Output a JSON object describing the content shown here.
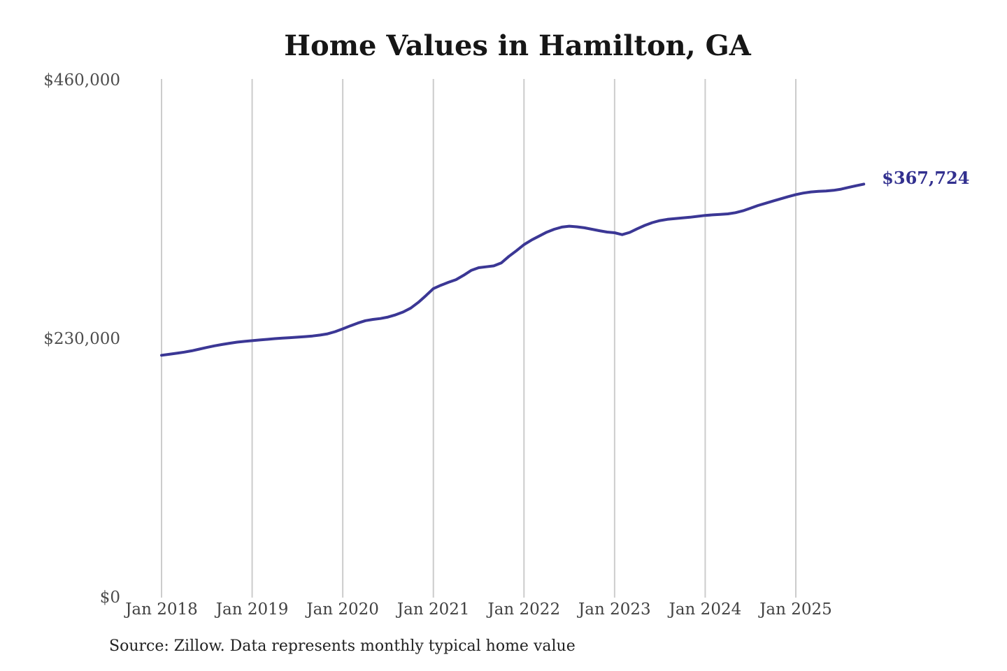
{
  "title": "Home Values in Hamilton, GA",
  "source_note": "Source: Zillow. Data represents monthly typical home value",
  "colors": {
    "background": "#ffffff",
    "line": "#3b3795",
    "grid": "#cccccc",
    "axis_text": "#4a4a4a",
    "title_text": "#161616",
    "source_text": "#222222",
    "end_label_text": "#32308f"
  },
  "chart_data": {
    "type": "line",
    "title": "Home Values in Hamilton, GA",
    "unit": "USD",
    "frequency": "monthly",
    "grid": "vertical-only",
    "legend": "none",
    "ylim": [
      0,
      460000
    ],
    "y_ticks": [
      {
        "value": 0,
        "label": "$0"
      },
      {
        "value": 230000,
        "label": "$230,000"
      },
      {
        "value": 460000,
        "label": "$460,000"
      }
    ],
    "x_tick_labels": [
      "Jan 2018",
      "Jan 2019",
      "Jan 2020",
      "Jan 2021",
      "Jan 2022",
      "Jan 2023",
      "Jan 2024",
      "Jan 2025"
    ],
    "last_value": 367724,
    "last_value_label": "$367,724",
    "months": [
      "2018-01",
      "2018-02",
      "2018-03",
      "2018-04",
      "2018-05",
      "2018-06",
      "2018-07",
      "2018-08",
      "2018-09",
      "2018-10",
      "2018-11",
      "2018-12",
      "2019-01",
      "2019-02",
      "2019-03",
      "2019-04",
      "2019-05",
      "2019-06",
      "2019-07",
      "2019-08",
      "2019-09",
      "2019-10",
      "2019-11",
      "2019-12",
      "2020-01",
      "2020-02",
      "2020-03",
      "2020-04",
      "2020-05",
      "2020-06",
      "2020-07",
      "2020-08",
      "2020-09",
      "2020-10",
      "2020-11",
      "2020-12",
      "2021-01",
      "2021-02",
      "2021-03",
      "2021-04",
      "2021-05",
      "2021-06",
      "2021-07",
      "2021-08",
      "2021-09",
      "2021-10",
      "2021-11",
      "2021-12",
      "2022-01",
      "2022-02",
      "2022-03",
      "2022-04",
      "2022-05",
      "2022-06",
      "2022-07",
      "2022-08",
      "2022-09",
      "2022-10",
      "2022-11",
      "2022-12",
      "2023-01",
      "2023-02",
      "2023-03",
      "2023-04",
      "2023-05",
      "2023-06",
      "2023-07",
      "2023-08",
      "2023-09",
      "2023-10",
      "2023-11",
      "2023-12",
      "2024-01",
      "2024-02",
      "2024-03",
      "2024-04",
      "2024-05",
      "2024-06",
      "2024-07",
      "2024-08",
      "2024-09",
      "2024-10",
      "2024-11",
      "2024-12",
      "2025-01",
      "2025-02",
      "2025-03",
      "2025-04",
      "2025-05",
      "2025-06",
      "2025-07",
      "2025-08",
      "2025-09",
      "2025-10"
    ],
    "series": [
      {
        "name": "Typical home value",
        "values": [
          215500,
          216400,
          217300,
          218300,
          219500,
          221000,
          222500,
          223900,
          225100,
          226200,
          227200,
          227900,
          228500,
          229100,
          229700,
          230300,
          230800,
          231200,
          231600,
          232100,
          232700,
          233500,
          234600,
          236500,
          239000,
          241700,
          244200,
          246300,
          247400,
          248200,
          249500,
          251500,
          254000,
          257500,
          262500,
          268500,
          274800,
          277800,
          280400,
          282800,
          286600,
          291000,
          293400,
          294200,
          295000,
          297700,
          303500,
          308500,
          313900,
          318000,
          321500,
          325000,
          327600,
          329500,
          330300,
          329800,
          328900,
          327600,
          326300,
          325100,
          324500,
          322800,
          324800,
          328000,
          331000,
          333500,
          335300,
          336400,
          337100,
          337700,
          338300,
          339100,
          339900,
          340400,
          340800,
          341300,
          342300,
          344000,
          346300,
          348700,
          350700,
          352700,
          354700,
          356600,
          358400,
          359800,
          360800,
          361300,
          361600,
          362200,
          363300,
          364800,
          366300,
          367724
        ]
      }
    ]
  }
}
